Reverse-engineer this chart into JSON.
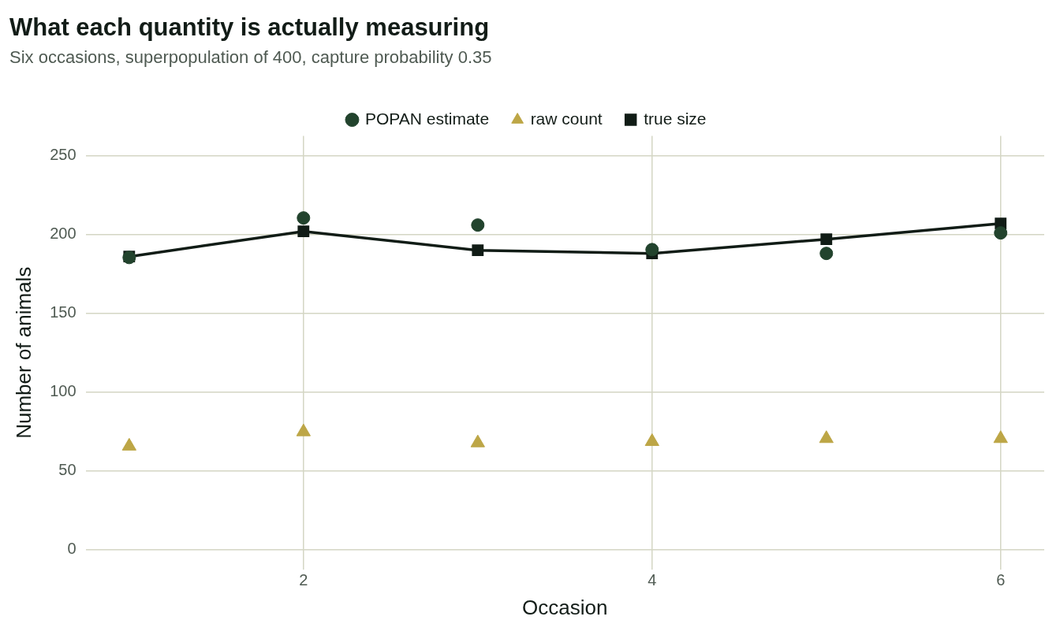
{
  "chart_data": {
    "type": "scatter",
    "title": "What each quantity is actually measuring",
    "subtitle": "Six occasions, superpopulation of 400, capture probability 0.35",
    "xlabel": "Occasion",
    "ylabel": "Number of animals",
    "x": [
      1,
      2,
      3,
      4,
      5,
      6
    ],
    "series": [
      {
        "name": "POPAN estimate",
        "marker": "circle",
        "color": "#22432d",
        "values": [
          185.4,
          210.5,
          206,
          190.4,
          188,
          201
        ]
      },
      {
        "name": "raw count",
        "marker": "triangle",
        "color": "#bda646",
        "values": [
          65.7,
          74.8,
          67.8,
          68.6,
          70.5,
          70.5
        ]
      },
      {
        "name": "true size",
        "type": "line",
        "marker": "square",
        "color": "#111c16",
        "values": [
          186,
          202,
          190,
          188,
          197,
          207
        ]
      }
    ],
    "xlim": [
      0.75,
      6.25
    ],
    "xticks": [
      2,
      4,
      6
    ],
    "ylim": [
      -12.5,
      262.5
    ],
    "yticks": [
      0,
      50,
      100,
      150,
      200,
      250
    ],
    "grid": true,
    "legend": "top"
  }
}
